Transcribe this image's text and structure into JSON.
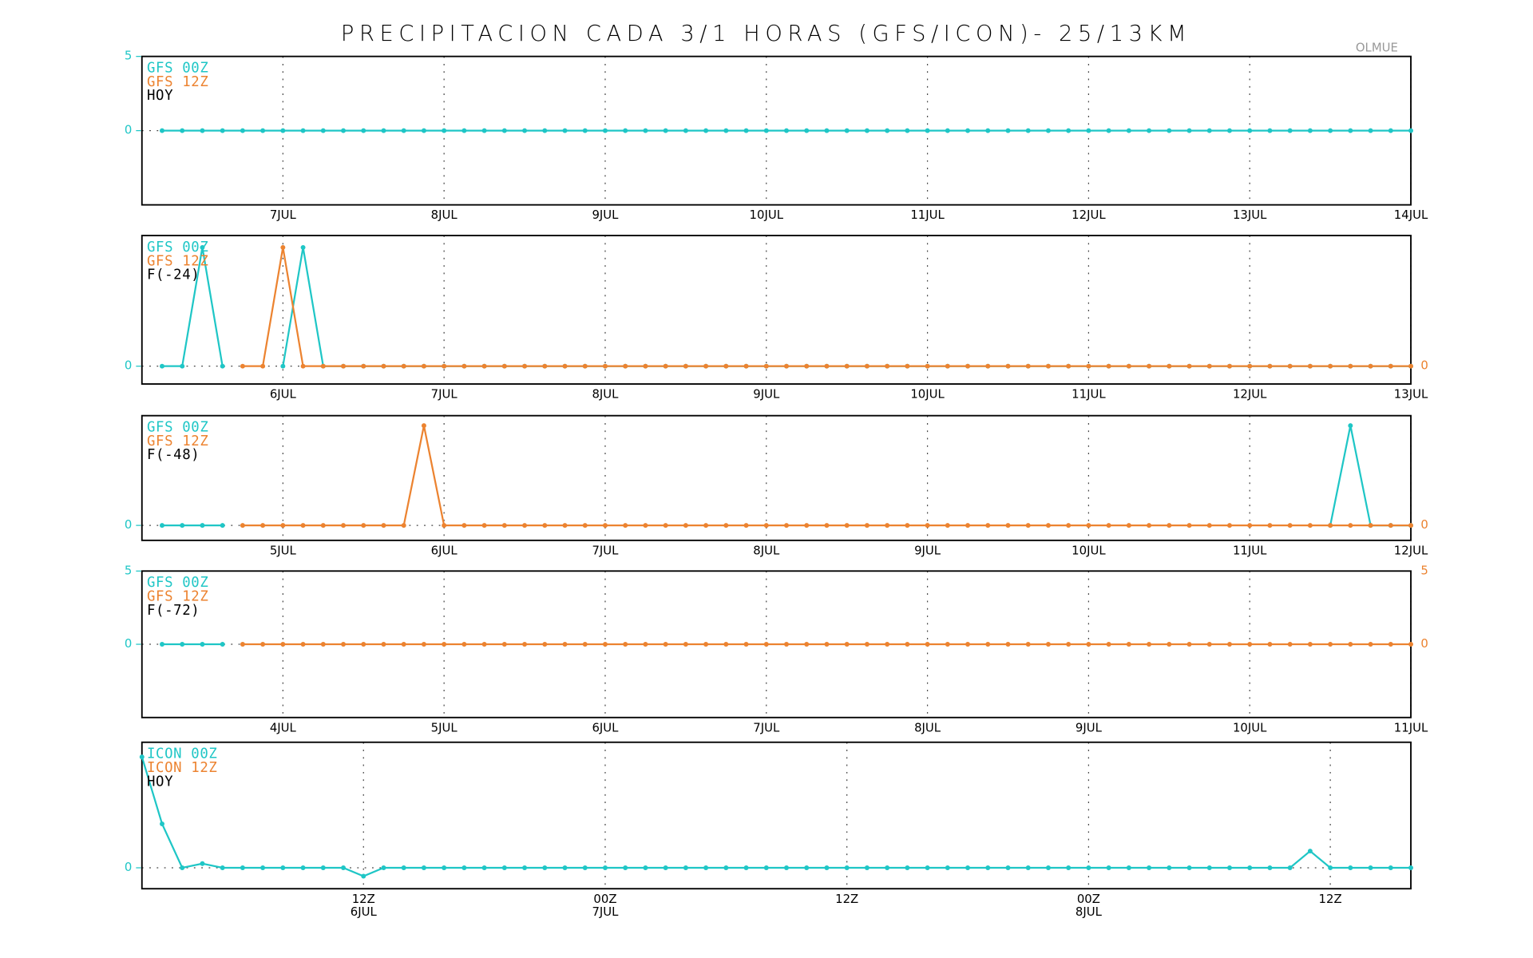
{
  "title": "PRECIPITACION CADA 3/1 HORAS (GFS/ICON)- 25/13KM",
  "location_label": "OLMUE",
  "chart_data": [
    {
      "type": "line",
      "legend_note": "HOY",
      "grid": true,
      "categories": [
        null,
        null,
        null,
        null,
        null,
        null,
        "7JUL",
        null,
        null,
        null,
        null,
        null,
        null,
        null,
        "8JUL",
        null,
        null,
        null,
        null,
        null,
        null,
        null,
        "9JUL",
        null,
        null,
        null,
        null,
        null,
        null,
        null,
        "10JUL",
        null,
        null,
        null,
        null,
        null,
        null,
        null,
        "11JUL",
        null,
        null,
        null,
        null,
        null,
        null,
        null,
        "12JUL",
        null,
        null,
        null,
        null,
        null,
        null,
        null,
        "13JUL",
        null,
        null,
        null,
        null,
        null,
        null,
        null,
        "14JUL"
      ],
      "ylim": [
        -5,
        5
      ],
      "yticks": [
        0,
        5
      ],
      "series": [
        {
          "name": "GFS 00Z",
          "color": "#1fc6c6",
          "values": [
            0,
            0,
            0,
            0,
            0,
            0,
            0,
            0,
            0,
            0,
            0,
            0,
            0,
            0,
            0,
            0,
            0,
            0,
            0,
            0,
            0,
            0,
            0,
            0,
            0,
            0,
            0,
            0,
            0,
            0,
            0,
            0,
            0,
            0,
            0,
            0,
            0,
            0,
            0,
            0,
            0,
            0,
            0,
            0,
            0,
            0,
            0,
            0,
            0,
            0,
            0,
            0,
            0,
            0,
            0,
            0,
            0,
            0,
            0,
            0,
            0,
            0,
            0
          ]
        },
        {
          "name": "GFS 12Z",
          "color": "#ec8330",
          "values": [
            null,
            null,
            null,
            null,
            null,
            null,
            null,
            null,
            null,
            null,
            null,
            null,
            null,
            null,
            null,
            null,
            null,
            null,
            null,
            null,
            null,
            null,
            null,
            null,
            null,
            null,
            null,
            null,
            null,
            null,
            null,
            null,
            null,
            null,
            null,
            null,
            null,
            null,
            null,
            null,
            null,
            null,
            null,
            null,
            null,
            null,
            null,
            null,
            null,
            null,
            null,
            null,
            null,
            null,
            null,
            null,
            null,
            null,
            null,
            null,
            null,
            null,
            null
          ]
        }
      ]
    },
    {
      "type": "line",
      "legend_note": "F(-24)",
      "grid": true,
      "categories": [
        null,
        null,
        null,
        null,
        null,
        null,
        "6JUL",
        null,
        null,
        null,
        null,
        null,
        null,
        null,
        "7JUL",
        null,
        null,
        null,
        null,
        null,
        null,
        null,
        "8JUL",
        null,
        null,
        null,
        null,
        null,
        null,
        null,
        "9JUL",
        null,
        null,
        null,
        null,
        null,
        null,
        null,
        "10JUL",
        null,
        null,
        null,
        null,
        null,
        null,
        null,
        "11JUL",
        null,
        null,
        null,
        null,
        null,
        null,
        null,
        "12JUL",
        null,
        null,
        null,
        null,
        null,
        null,
        null,
        "13JUL"
      ],
      "ylim": [
        -0.15,
        1.1
      ],
      "yticks": [
        0
      ],
      "y2lim": [
        -0.15,
        1.1
      ],
      "y2ticks": [
        0
      ],
      "series": [
        {
          "name": "GFS 00Z",
          "color": "#1fc6c6",
          "values": [
            0,
            0,
            1,
            0,
            null,
            null,
            0,
            1,
            0,
            0,
            0,
            0,
            0,
            0,
            0,
            0,
            0,
            0,
            0,
            0,
            0,
            0,
            0,
            0,
            0,
            0,
            0,
            0,
            0,
            0,
            0,
            0,
            0,
            0,
            0,
            0,
            0,
            0,
            0,
            0,
            0,
            0,
            0,
            0,
            0,
            0,
            0,
            0,
            0,
            0,
            0,
            0,
            0,
            0,
            0,
            0,
            0,
            0,
            0,
            0,
            0,
            0,
            0
          ]
        },
        {
          "name": "GFS 12Z",
          "color": "#ec8330",
          "axis": "y2",
          "values": [
            null,
            null,
            null,
            null,
            0,
            0,
            1,
            0,
            0,
            0,
            0,
            0,
            0,
            0,
            0,
            0,
            0,
            0,
            0,
            0,
            0,
            0,
            0,
            0,
            0,
            0,
            0,
            0,
            0,
            0,
            0,
            0,
            0,
            0,
            0,
            0,
            0,
            0,
            0,
            0,
            0,
            0,
            0,
            0,
            0,
            0,
            0,
            0,
            0,
            0,
            0,
            0,
            0,
            0,
            0,
            0,
            0,
            0,
            0,
            0,
            0,
            0,
            0
          ]
        }
      ]
    },
    {
      "type": "line",
      "legend_note": "F(-48)",
      "grid": true,
      "categories": [
        null,
        null,
        null,
        null,
        null,
        null,
        "5JUL",
        null,
        null,
        null,
        null,
        null,
        null,
        null,
        "6JUL",
        null,
        null,
        null,
        null,
        null,
        null,
        null,
        "7JUL",
        null,
        null,
        null,
        null,
        null,
        null,
        null,
        "8JUL",
        null,
        null,
        null,
        null,
        null,
        null,
        null,
        "9JUL",
        null,
        null,
        null,
        null,
        null,
        null,
        null,
        "10JUL",
        null,
        null,
        null,
        null,
        null,
        null,
        null,
        "11JUL",
        null,
        null,
        null,
        null,
        null,
        null,
        null,
        "12JUL"
      ],
      "ylim": [
        -0.15,
        1.1
      ],
      "yticks": [
        0
      ],
      "y2lim": [
        -0.15,
        1.1
      ],
      "y2ticks": [
        0
      ],
      "series": [
        {
          "name": "GFS 00Z",
          "color": "#1fc6c6",
          "values": [
            0,
            0,
            0,
            0,
            null,
            null,
            null,
            null,
            null,
            null,
            null,
            null,
            null,
            null,
            null,
            null,
            null,
            null,
            null,
            null,
            null,
            null,
            null,
            null,
            null,
            null,
            null,
            null,
            null,
            null,
            null,
            null,
            null,
            null,
            null,
            null,
            null,
            null,
            null,
            null,
            null,
            null,
            null,
            null,
            null,
            null,
            null,
            null,
            null,
            null,
            null,
            null,
            null,
            null,
            null,
            null,
            null,
            null,
            0,
            1,
            0,
            0,
            0
          ]
        },
        {
          "name": "GFS 12Z",
          "color": "#ec8330",
          "axis": "y2",
          "values": [
            null,
            null,
            null,
            null,
            0,
            0,
            0,
            0,
            0,
            0,
            0,
            0,
            0,
            1,
            0,
            0,
            0,
            0,
            0,
            0,
            0,
            0,
            0,
            0,
            0,
            0,
            0,
            0,
            0,
            0,
            0,
            0,
            0,
            0,
            0,
            0,
            0,
            0,
            0,
            0,
            0,
            0,
            0,
            0,
            0,
            0,
            0,
            0,
            0,
            0,
            0,
            0,
            0,
            0,
            0,
            0,
            0,
            0,
            0,
            0,
            0,
            0,
            0
          ]
        }
      ]
    },
    {
      "type": "line",
      "legend_note": "F(-72)",
      "grid": true,
      "categories": [
        null,
        null,
        null,
        null,
        null,
        null,
        "4JUL",
        null,
        null,
        null,
        null,
        null,
        null,
        null,
        "5JUL",
        null,
        null,
        null,
        null,
        null,
        null,
        null,
        "6JUL",
        null,
        null,
        null,
        null,
        null,
        null,
        null,
        "7JUL",
        null,
        null,
        null,
        null,
        null,
        null,
        null,
        "8JUL",
        null,
        null,
        null,
        null,
        null,
        null,
        null,
        "9JUL",
        null,
        null,
        null,
        null,
        null,
        null,
        null,
        "10JUL",
        null,
        null,
        null,
        null,
        null,
        null,
        null,
        "11JUL"
      ],
      "ylim": [
        -5,
        5
      ],
      "yticks": [
        0,
        5
      ],
      "y2lim": [
        -5,
        5
      ],
      "y2ticks": [
        0,
        5
      ],
      "series": [
        {
          "name": "GFS 00Z",
          "color": "#1fc6c6",
          "values": [
            0,
            0,
            0,
            0,
            null,
            null,
            null,
            null,
            null,
            null,
            null,
            null,
            null,
            null,
            null,
            null,
            null,
            null,
            null,
            null,
            null,
            null,
            null,
            null,
            null,
            null,
            null,
            null,
            null,
            null,
            null,
            null,
            null,
            null,
            null,
            null,
            null,
            null,
            null,
            null,
            null,
            null,
            null,
            null,
            null,
            null,
            null,
            null,
            null,
            null,
            null,
            null,
            null,
            null,
            null,
            null,
            null,
            null,
            null,
            null,
            null,
            null,
            null
          ]
        },
        {
          "name": "GFS 12Z",
          "color": "#ec8330",
          "axis": "y2",
          "values": [
            null,
            null,
            null,
            null,
            0,
            0,
            0,
            0,
            0,
            0,
            0,
            0,
            0,
            0,
            0,
            0,
            0,
            0,
            0,
            0,
            0,
            0,
            0,
            0,
            0,
            0,
            0,
            0,
            0,
            0,
            0,
            0,
            0,
            0,
            0,
            0,
            0,
            0,
            0,
            0,
            0,
            0,
            0,
            0,
            0,
            0,
            0,
            0,
            0,
            0,
            0,
            0,
            0,
            0,
            0,
            0,
            0,
            0,
            0,
            0,
            0,
            0,
            0
          ]
        }
      ]
    },
    {
      "type": "line",
      "legend_note": "HOY",
      "grid": true,
      "categories": [
        null,
        null,
        null,
        null,
        null,
        null,
        null,
        null,
        null,
        null,
        null,
        "12Z",
        null,
        null,
        null,
        null,
        null,
        null,
        null,
        null,
        null,
        null,
        null,
        "00Z",
        null,
        null,
        null,
        null,
        null,
        null,
        null,
        null,
        null,
        null,
        null,
        "12Z",
        null,
        null,
        null,
        null,
        null,
        null,
        null,
        null,
        null,
        null,
        null,
        "00Z",
        null,
        null,
        null,
        null,
        null,
        null,
        null,
        null,
        null,
        null,
        null,
        "12Z",
        null,
        null,
        null,
        null
      ],
      "category_dates": [
        null,
        null,
        null,
        null,
        null,
        null,
        null,
        null,
        null,
        null,
        null,
        "6JUL",
        null,
        null,
        null,
        null,
        null,
        null,
        null,
        null,
        null,
        null,
        null,
        "7JUL",
        null,
        null,
        null,
        null,
        null,
        null,
        null,
        null,
        null,
        null,
        null,
        null,
        null,
        null,
        null,
        null,
        null,
        null,
        null,
        null,
        null,
        null,
        null,
        "8JUL",
        null,
        null,
        null,
        null,
        null,
        null,
        null,
        null,
        null,
        null,
        null,
        null,
        null,
        null,
        null,
        null
      ],
      "ylim": [
        -0.5,
        3
      ],
      "yticks": [
        0
      ],
      "series": [
        {
          "name": "ICON 00Z",
          "color": "#1fc6c6",
          "values": [
            2.65,
            1.05,
            0,
            0.1,
            0,
            0,
            0,
            0,
            0,
            0,
            0,
            -0.2,
            0,
            0,
            0,
            0,
            0,
            0,
            0,
            0,
            0,
            0,
            0,
            0,
            0,
            0,
            0,
            0,
            0,
            0,
            0,
            0,
            0,
            0,
            0,
            0,
            0,
            0,
            0,
            0,
            0,
            0,
            0,
            0,
            0,
            0,
            0,
            0,
            0,
            0,
            0,
            0,
            0,
            0,
            0,
            0,
            0,
            0,
            0.4,
            0,
            0,
            0,
            0,
            0
          ]
        },
        {
          "name": "ICON 12Z",
          "color": "#ec8330",
          "values": [
            null,
            null,
            null,
            null,
            null,
            null,
            null,
            null,
            null,
            null,
            null,
            null,
            null,
            null,
            null,
            null,
            null,
            null,
            null,
            null,
            null,
            null,
            null,
            null,
            null,
            null,
            null,
            null,
            null,
            null,
            null,
            null,
            null,
            null,
            null,
            null,
            null,
            null,
            null,
            null,
            null,
            null,
            null,
            null,
            null,
            null,
            null,
            null,
            null,
            null,
            null,
            null,
            null,
            null,
            null,
            null,
            null,
            null,
            null,
            null,
            null,
            null,
            null,
            null
          ]
        }
      ]
    }
  ]
}
